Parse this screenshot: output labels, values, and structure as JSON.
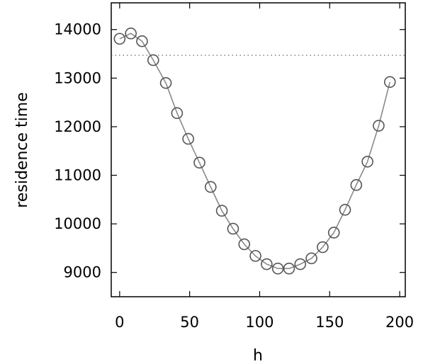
{
  "chart_data": {
    "type": "line",
    "xlabel": "h",
    "ylabel": "residence time",
    "xlim": [
      -6,
      204
    ],
    "ylim": [
      8500,
      14550
    ],
    "x_ticks": [
      0,
      50,
      100,
      150,
      200
    ],
    "y_ticks": [
      9000,
      10000,
      11000,
      12000,
      13000,
      14000
    ],
    "x_tick_labels": [
      "0",
      "50",
      "100",
      "150",
      "200"
    ],
    "y_tick_labels": [
      "9000",
      "10000",
      "11000",
      "12000",
      "13000",
      "14000"
    ],
    "grid": false,
    "legend": "none",
    "reference_line": {
      "y": 13470,
      "style": "dotted"
    },
    "series": [
      {
        "marker": "open-circle",
        "x": [
          0,
          8,
          16,
          24,
          33,
          41,
          49,
          57,
          65,
          73,
          81,
          89,
          97,
          105,
          113,
          121,
          129,
          137,
          145,
          153,
          161,
          169,
          177,
          185,
          193
        ],
        "y": [
          13810,
          13920,
          13760,
          13370,
          12900,
          12280,
          11750,
          11260,
          10760,
          10270,
          9900,
          9580,
          9340,
          9170,
          9080,
          9080,
          9170,
          9290,
          9520,
          9820,
          10290,
          10800,
          11280,
          12020,
          12920
        ]
      }
    ],
    "colors": {
      "marker": "#555555",
      "line": "#8a8a8a",
      "axis": "#000000",
      "reference": "#555555"
    }
  }
}
